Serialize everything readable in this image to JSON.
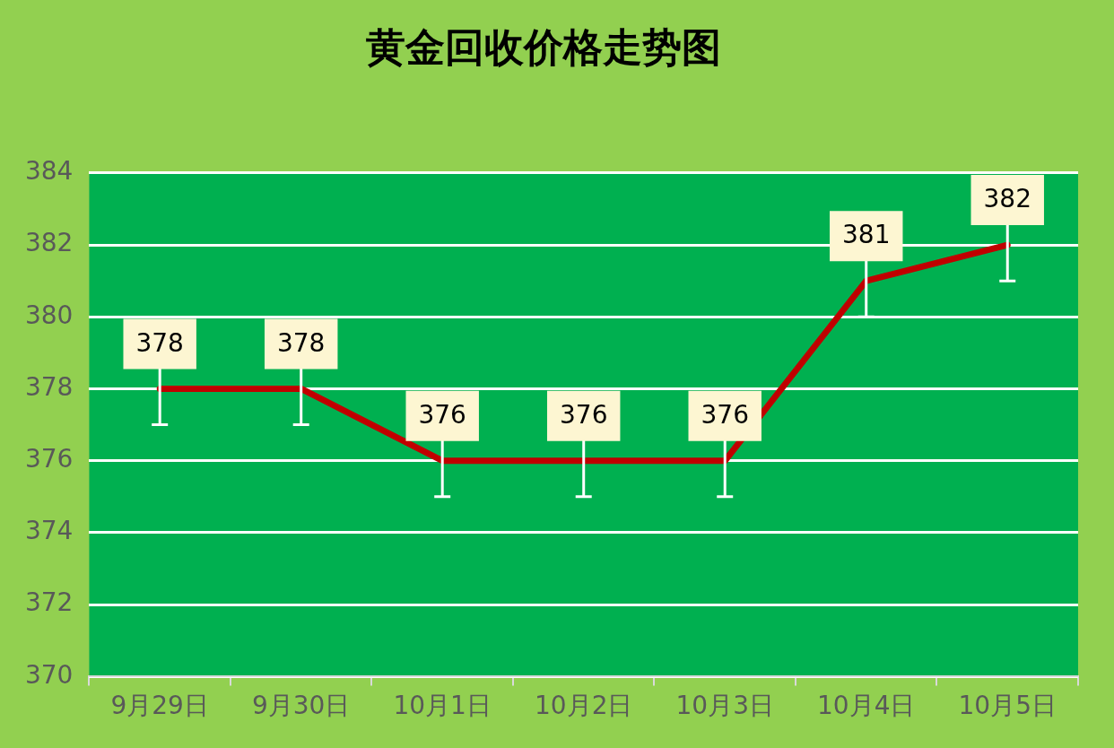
{
  "chart_data": {
    "type": "line",
    "title": "黄金回收价格走势图",
    "categories": [
      "9月29日",
      "9月30日",
      "10月1日",
      "10月2日",
      "10月3日",
      "10月4日",
      "10月5日"
    ],
    "series": [
      {
        "color": "#c00000",
        "values": [
          378,
          378,
          376,
          376,
          376,
          381,
          382
        ],
        "errors": [
          1,
          1,
          1,
          1,
          1,
          1,
          1
        ]
      }
    ],
    "ylim": [
      370,
      384
    ],
    "yticks": [
      370,
      372,
      374,
      376,
      378,
      380,
      382,
      384
    ],
    "grid": "y",
    "legend": false,
    "marker": "none",
    "line_style": "solid",
    "data_labels": true
  }
}
